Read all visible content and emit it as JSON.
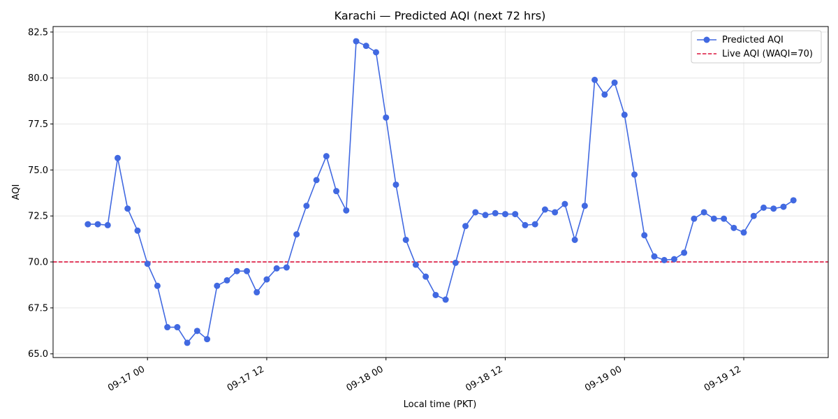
{
  "chart_data": {
    "type": "line",
    "title": "Karachi — Predicted AQI (next 72 hrs)",
    "xlabel": "Local time (PKT)",
    "ylabel": "AQI",
    "ylim": [
      64.8,
      82.8
    ],
    "xlim_hours": [
      -9.5,
      68.5
    ],
    "yticks": [
      65.0,
      67.5,
      70.0,
      72.5,
      75.0,
      77.5,
      80.0,
      82.5
    ],
    "ytick_labels": [
      "65.0",
      "67.5",
      "70.0",
      "72.5",
      "75.0",
      "77.5",
      "80.0",
      "82.5"
    ],
    "xticks_hours": [
      0,
      12,
      24,
      36,
      48,
      60
    ],
    "xtick_labels": [
      "09-17 00",
      "09-17 12",
      "09-18 00",
      "09-18 12",
      "09-19 00",
      "09-19 12"
    ],
    "grid": true,
    "legend_position": "top-right",
    "series": [
      {
        "name": "Predicted AQI",
        "color": "#4169e1",
        "x_hours": [
          -6,
          -5,
          -4,
          -3,
          -2,
          -1,
          0,
          1,
          2,
          3,
          4,
          5,
          6,
          7,
          8,
          9,
          10,
          11,
          12,
          13,
          14,
          15,
          16,
          17,
          18,
          19,
          20,
          21,
          22,
          23,
          24,
          25,
          26,
          27,
          28,
          29,
          30,
          31,
          32,
          33,
          34,
          35,
          36,
          37,
          38,
          39,
          40,
          41,
          42,
          43,
          44,
          45,
          46,
          47,
          48,
          49,
          50,
          51,
          52,
          53,
          54,
          55,
          56,
          57,
          58,
          59,
          60,
          61,
          62,
          63,
          64,
          65
        ],
        "values": [
          72.05,
          72.05,
          72.0,
          75.65,
          72.9,
          71.7,
          69.9,
          68.7,
          66.45,
          66.45,
          65.6,
          66.25,
          65.8,
          68.7,
          69.0,
          69.5,
          69.5,
          68.35,
          69.05,
          69.65,
          69.7,
          71.5,
          73.05,
          74.45,
          75.75,
          73.85,
          72.8,
          82.0,
          81.75,
          81.4,
          77.85,
          74.2,
          71.2,
          69.85,
          69.2,
          68.2,
          67.95,
          69.95,
          71.95,
          72.7,
          72.55,
          72.65,
          72.6,
          72.6,
          72.0,
          72.05,
          72.85,
          72.7,
          73.15,
          71.2,
          73.05,
          79.9,
          79.1,
          79.75,
          78.0,
          74.75,
          71.45,
          70.3,
          70.1,
          70.15,
          70.5,
          72.35,
          72.7,
          72.35,
          72.35,
          71.85,
          71.6,
          72.5,
          72.95,
          72.9,
          73.0,
          73.35
        ]
      }
    ],
    "reference_lines": [
      {
        "name": "Live AQI (WAQI=70)",
        "value": 70,
        "color": "#dc143c",
        "style": "dashed"
      }
    ]
  }
}
